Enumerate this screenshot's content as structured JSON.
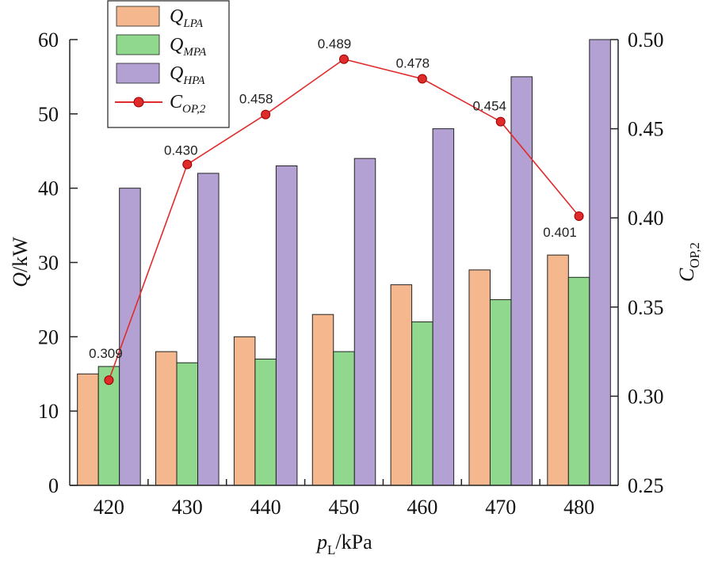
{
  "chart_data": {
    "type": "bar",
    "categories": [
      "420",
      "430",
      "440",
      "450",
      "460",
      "470",
      "480"
    ],
    "series": [
      {
        "name": "Q_LPA",
        "label_main": "Q",
        "label_sub": "LPA",
        "type": "bar",
        "axis": "left",
        "color": "#f5b78e",
        "values": [
          15,
          18,
          20,
          23,
          27,
          29,
          31
        ]
      },
      {
        "name": "Q_MPA",
        "label_main": "Q",
        "label_sub": "MPA",
        "type": "bar",
        "axis": "left",
        "color": "#8fd88e",
        "values": [
          16,
          16.5,
          17,
          18,
          22,
          25,
          28
        ]
      },
      {
        "name": "Q_HPA",
        "label_main": "Q",
        "label_sub": "HPA",
        "type": "bar",
        "axis": "left",
        "color": "#b4a1d4",
        "values": [
          40,
          42,
          43,
          44,
          48,
          55,
          60
        ]
      },
      {
        "name": "C_OP,2",
        "label_main": "C",
        "label_sub": "OP,2",
        "type": "line",
        "axis": "right",
        "color": "#e02b2b",
        "values": [
          0.309,
          0.43,
          0.458,
          0.489,
          0.478,
          0.454,
          0.401
        ],
        "data_labels": [
          "0.309",
          "0.430",
          "0.458",
          "0.489",
          "0.478",
          "0.454",
          "0.401"
        ]
      }
    ],
    "xlabel_main": "p",
    "xlabel_sub": "L",
    "xlabel_unit": "/kPa",
    "ylabel_main": "Q",
    "ylabel_unit": "/kW",
    "y2label_main": "C",
    "y2label_sub": "OP,2",
    "ylim": [
      0,
      60
    ],
    "y2lim": [
      0.25,
      0.5
    ],
    "yticks": [
      "0",
      "10",
      "20",
      "30",
      "40",
      "50",
      "60"
    ],
    "y2ticks": [
      "0.25",
      "0.30",
      "0.35",
      "0.40",
      "0.45",
      "0.50"
    ],
    "legend_position": "top-left",
    "grid": false
  }
}
